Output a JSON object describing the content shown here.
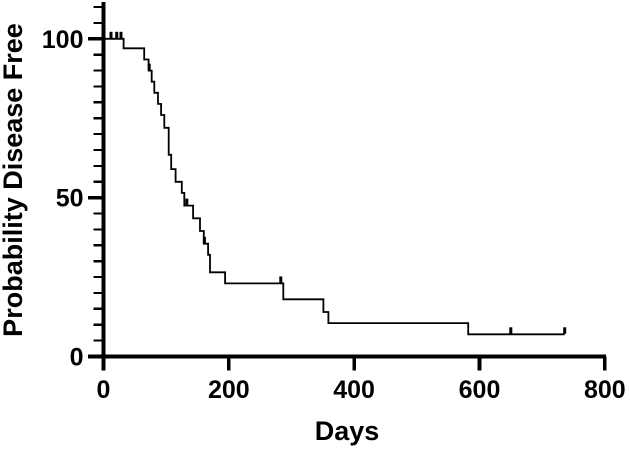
{
  "chart_data": {
    "type": "line",
    "subtype": "kaplan-meier-step-curve",
    "title": "",
    "xlabel": "Days",
    "ylabel": "Probability Disease Free",
    "xlim": [
      0,
      800
    ],
    "ylim": [
      0,
      110
    ],
    "x_ticks": [
      0,
      200,
      400,
      600,
      800
    ],
    "x_tick_labels": [
      "0",
      "200",
      "400",
      "600",
      "800"
    ],
    "y_ticks_major": [
      0,
      50,
      100
    ],
    "y_tick_labels": [
      "0",
      "50",
      "100"
    ],
    "y_minor_tick_interval": 5,
    "grid": false,
    "legend_position": "none",
    "line_color": "#000000",
    "background_color": "#ffffff",
    "series": [
      {
        "name": "Probability Disease Free",
        "steps": [
          [
            0,
            100
          ],
          [
            32,
            97
          ],
          [
            65,
            93.5
          ],
          [
            72,
            90
          ],
          [
            77,
            86.5
          ],
          [
            81,
            83
          ],
          [
            87,
            79.5
          ],
          [
            92,
            76
          ],
          [
            97,
            72
          ],
          [
            104,
            63.5
          ],
          [
            108,
            59
          ],
          [
            115,
            55
          ],
          [
            125,
            51.5
          ],
          [
            129,
            47.5
          ],
          [
            143,
            43.5
          ],
          [
            154,
            39.5
          ],
          [
            160,
            35.5
          ],
          [
            167,
            32
          ],
          [
            170,
            26.5
          ],
          [
            194,
            23
          ],
          [
            287,
            18
          ],
          [
            351,
            14
          ],
          [
            359,
            10.5
          ],
          [
            582,
            7
          ]
        ],
        "end_day": 736,
        "censor_marks": [
          [
            12,
            100
          ],
          [
            21,
            100
          ],
          [
            28,
            100
          ],
          [
            73,
            90
          ],
          [
            133,
            47.5
          ],
          [
            161,
            35.5
          ],
          [
            283,
            23
          ],
          [
            650,
            7
          ],
          [
            736,
            7
          ]
        ]
      }
    ]
  }
}
